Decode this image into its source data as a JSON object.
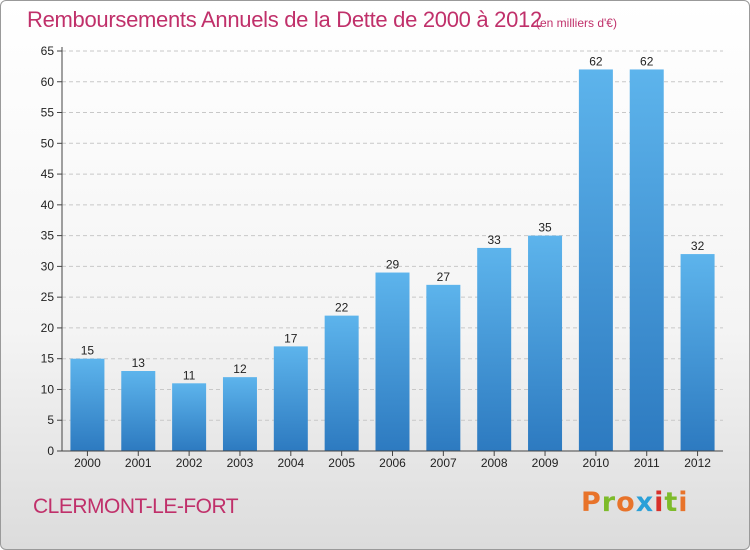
{
  "header": {
    "title": "Remboursements Annuels de la Dette de 2000 à 2012",
    "subtitle": "(en milliers d'€)"
  },
  "footer": {
    "commune": "CLERMONT-LE-FORT",
    "brand": "Proxiti"
  },
  "colors": {
    "title": "#c0306a",
    "bar_top": "#5db4ec",
    "bar_bottom": "#2d7ac0",
    "grid": "#c8c8c8",
    "brand_letters": [
      "#e8732a",
      "#7dbb2a",
      "#e8732a",
      "#2aa0d8",
      "#d8302a",
      "#7dbb2a",
      "#e8732a"
    ]
  },
  "chart_data": {
    "type": "bar",
    "title": "Remboursements Annuels de la Dette de 2000 à 2012",
    "subtitle": "(en milliers d'€)",
    "xlabel": "",
    "ylabel": "",
    "categories": [
      "2000",
      "2001",
      "2002",
      "2003",
      "2004",
      "2005",
      "2006",
      "2007",
      "2008",
      "2009",
      "2010",
      "2011",
      "2012"
    ],
    "values": [
      15,
      13,
      11,
      12,
      17,
      22,
      29,
      27,
      33,
      35,
      62,
      62,
      32
    ],
    "ylim": [
      0,
      65
    ],
    "yticks": [
      0,
      5,
      10,
      15,
      20,
      25,
      30,
      35,
      40,
      45,
      50,
      55,
      60,
      65
    ],
    "grid": true
  }
}
